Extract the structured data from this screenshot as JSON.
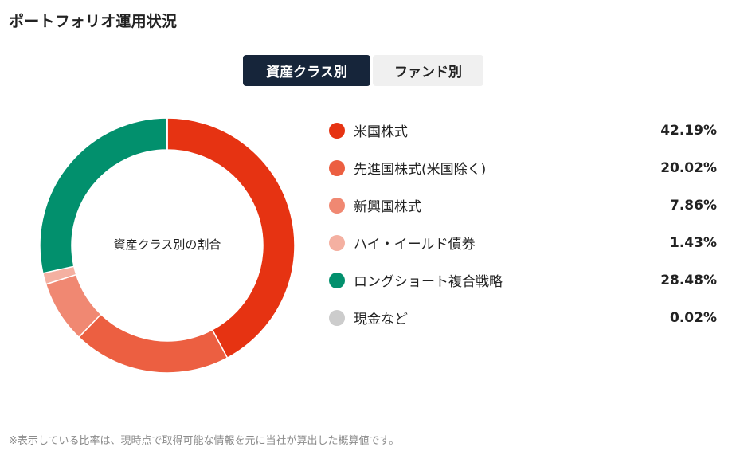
{
  "page": {
    "title": "ポートフォリオ運用状況"
  },
  "tabs": [
    {
      "label": "資産クラス別",
      "active": true
    },
    {
      "label": "ファンド別",
      "active": false
    }
  ],
  "donut": {
    "center_label": "資産クラス別の割合"
  },
  "legend": [
    {
      "label": "米国株式",
      "value": "42.19%",
      "color": "#e63312"
    },
    {
      "label": "先進国株式(米国除く)",
      "value": "20.02%",
      "color": "#ec5f41"
    },
    {
      "label": "新興国株式",
      "value": "7.86%",
      "color": "#f08872"
    },
    {
      "label": "ハイ・イールド債券",
      "value": "1.43%",
      "color": "#f4b0a1"
    },
    {
      "label": "ロングショート複合戦略",
      "value": "28.48%",
      "color": "#02906d"
    },
    {
      "label": "現金など",
      "value": "0.02%",
      "color": "#cccccc"
    }
  ],
  "footnote": "※表示している比率は、現時点で取得可能な情報を元に当社が算出した概算値です。",
  "chart_data": {
    "type": "pie",
    "subtype": "donut",
    "title": "資産クラス別の割合",
    "categories": [
      "米国株式",
      "先進国株式(米国除く)",
      "新興国株式",
      "ハイ・イールド債券",
      "ロングショート複合戦略",
      "現金など"
    ],
    "values": [
      42.19,
      20.02,
      7.86,
      1.43,
      28.48,
      0.02
    ],
    "colors": [
      "#e63312",
      "#ec5f41",
      "#f08872",
      "#f4b0a1",
      "#02906d",
      "#cccccc"
    ],
    "unit": "%",
    "legend_position": "right"
  }
}
